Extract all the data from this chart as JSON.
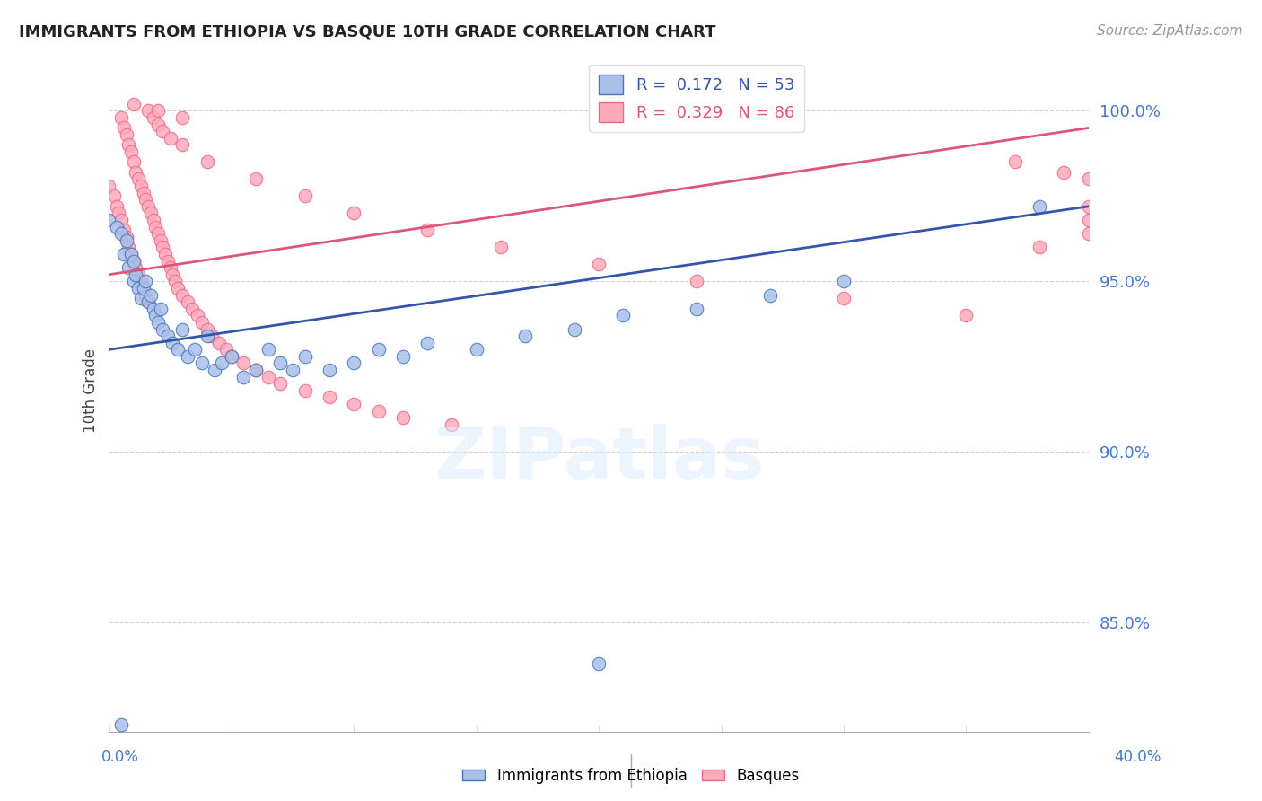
{
  "title": "IMMIGRANTS FROM ETHIOPIA VS BASQUE 10TH GRADE CORRELATION CHART",
  "source": "Source: ZipAtlas.com",
  "ylabel": "10th Grade",
  "ylabel_right_labels": [
    "100.0%",
    "95.0%",
    "90.0%",
    "85.0%"
  ],
  "ylabel_right_values": [
    1.0,
    0.95,
    0.9,
    0.85
  ],
  "xlim": [
    0.0,
    0.4
  ],
  "ylim": [
    0.818,
    1.018
  ],
  "watermark_text": "ZIPatlas",
  "legend_blue_label": "R =  0.172   N = 53",
  "legend_pink_label": "R =  0.329   N = 86",
  "blue_fill_color": "#AABFE8",
  "blue_edge_color": "#4477BB",
  "pink_fill_color": "#FFAABB",
  "pink_edge_color": "#EE6688",
  "blue_line_color": "#3355AA",
  "pink_line_color": "#DD5577",
  "grid_color": "#CCCCCC",
  "axis_label_color": "#4477CC",
  "background_color": "#FFFFFF",
  "blue_x": [
    0.0,
    0.003,
    0.005,
    0.006,
    0.007,
    0.008,
    0.009,
    0.01,
    0.01,
    0.011,
    0.012,
    0.013,
    0.014,
    0.015,
    0.016,
    0.017,
    0.018,
    0.019,
    0.02,
    0.021,
    0.022,
    0.024,
    0.026,
    0.028,
    0.03,
    0.032,
    0.035,
    0.038,
    0.04,
    0.043,
    0.046,
    0.05,
    0.055,
    0.06,
    0.065,
    0.07,
    0.075,
    0.08,
    0.09,
    0.1,
    0.11,
    0.12,
    0.13,
    0.15,
    0.17,
    0.19,
    0.21,
    0.24,
    0.27,
    0.3,
    0.005,
    0.2,
    0.38
  ],
  "blue_y": [
    0.968,
    0.966,
    0.964,
    0.958,
    0.962,
    0.954,
    0.958,
    0.956,
    0.95,
    0.952,
    0.948,
    0.945,
    0.948,
    0.95,
    0.944,
    0.946,
    0.942,
    0.94,
    0.938,
    0.942,
    0.936,
    0.934,
    0.932,
    0.93,
    0.936,
    0.928,
    0.93,
    0.926,
    0.934,
    0.924,
    0.926,
    0.928,
    0.922,
    0.924,
    0.93,
    0.926,
    0.924,
    0.928,
    0.924,
    0.926,
    0.93,
    0.928,
    0.932,
    0.93,
    0.934,
    0.936,
    0.94,
    0.942,
    0.946,
    0.95,
    0.82,
    0.838,
    0.972
  ],
  "pink_x": [
    0.0,
    0.002,
    0.003,
    0.004,
    0.005,
    0.005,
    0.006,
    0.006,
    0.007,
    0.007,
    0.008,
    0.008,
    0.009,
    0.009,
    0.01,
    0.01,
    0.011,
    0.011,
    0.012,
    0.012,
    0.013,
    0.013,
    0.014,
    0.014,
    0.015,
    0.015,
    0.016,
    0.016,
    0.017,
    0.018,
    0.019,
    0.02,
    0.021,
    0.022,
    0.023,
    0.024,
    0.025,
    0.026,
    0.027,
    0.028,
    0.03,
    0.032,
    0.034,
    0.036,
    0.038,
    0.04,
    0.042,
    0.045,
    0.048,
    0.05,
    0.055,
    0.06,
    0.065,
    0.07,
    0.08,
    0.09,
    0.1,
    0.11,
    0.12,
    0.14,
    0.016,
    0.018,
    0.02,
    0.022,
    0.025,
    0.03,
    0.04,
    0.06,
    0.08,
    0.1,
    0.13,
    0.16,
    0.2,
    0.24,
    0.3,
    0.35,
    0.38,
    0.4,
    0.4,
    0.4,
    0.01,
    0.02,
    0.03,
    0.37,
    0.39,
    0.4
  ],
  "pink_y": [
    0.978,
    0.975,
    0.972,
    0.97,
    0.968,
    0.998,
    0.995,
    0.965,
    0.993,
    0.963,
    0.99,
    0.96,
    0.988,
    0.958,
    0.985,
    0.956,
    0.982,
    0.954,
    0.98,
    0.952,
    0.978,
    0.95,
    0.976,
    0.948,
    0.974,
    0.946,
    0.972,
    0.944,
    0.97,
    0.968,
    0.966,
    0.964,
    0.962,
    0.96,
    0.958,
    0.956,
    0.954,
    0.952,
    0.95,
    0.948,
    0.946,
    0.944,
    0.942,
    0.94,
    0.938,
    0.936,
    0.934,
    0.932,
    0.93,
    0.928,
    0.926,
    0.924,
    0.922,
    0.92,
    0.918,
    0.916,
    0.914,
    0.912,
    0.91,
    0.908,
    1.0,
    0.998,
    0.996,
    0.994,
    0.992,
    0.99,
    0.985,
    0.98,
    0.975,
    0.97,
    0.965,
    0.96,
    0.955,
    0.95,
    0.945,
    0.94,
    0.96,
    0.972,
    0.968,
    0.964,
    1.002,
    1.0,
    0.998,
    0.985,
    0.982,
    0.98
  ],
  "blue_trendline_x": [
    0.0,
    0.4
  ],
  "blue_trendline_y": [
    0.93,
    0.972
  ],
  "pink_trendline_x": [
    0.0,
    0.4
  ],
  "pink_trendline_y": [
    0.952,
    0.995
  ]
}
